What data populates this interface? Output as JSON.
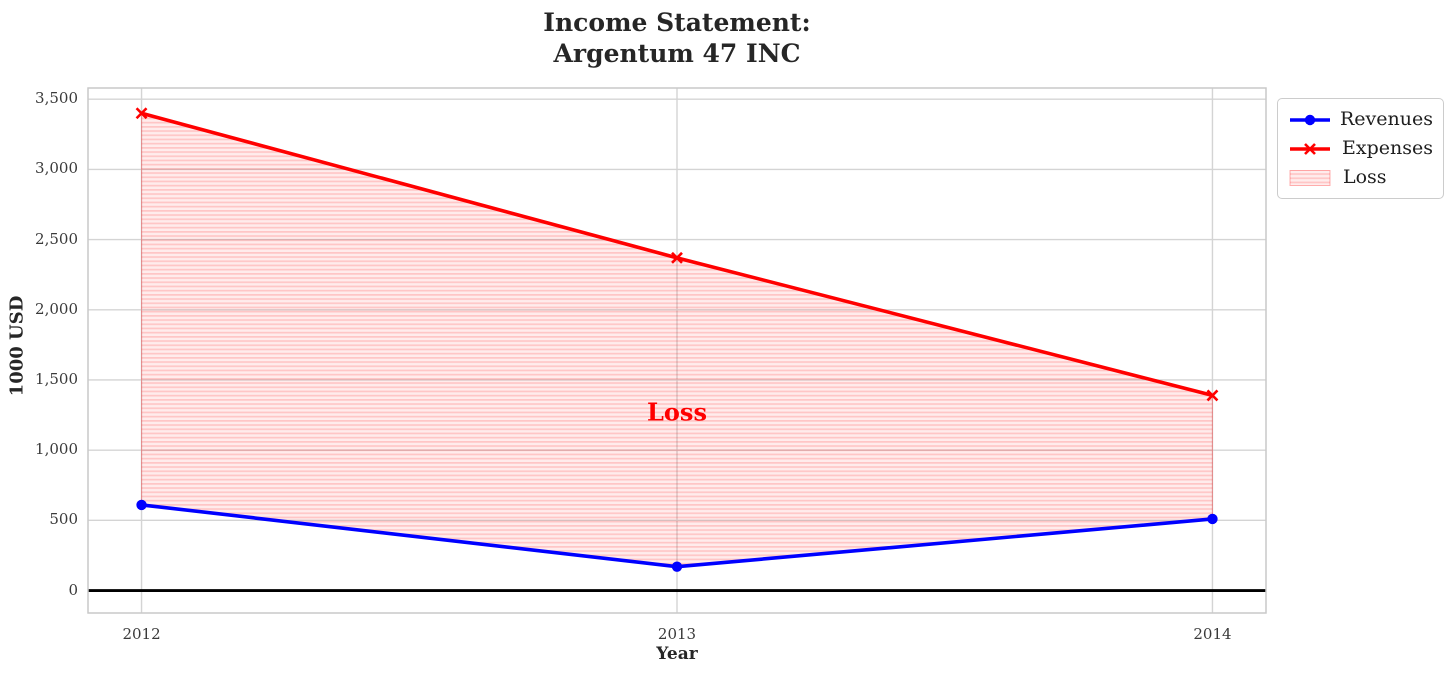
{
  "chart_data": {
    "type": "line",
    "title": "Income Statement:\nArgentum 47 INC",
    "xlabel": "Year",
    "ylabel": "1000 USD",
    "x": [
      2012,
      2013,
      2014
    ],
    "xticks": [
      2012,
      2013,
      2014
    ],
    "yticks": [
      0,
      500,
      1000,
      1500,
      2000,
      2500,
      3000,
      3500
    ],
    "xlim": [
      2011.9,
      2014.1
    ],
    "ylim": [
      -160,
      3580
    ],
    "grid": true,
    "zero_line": true,
    "series": [
      {
        "name": "Revenues",
        "color": "#0000ff",
        "marker": "circle",
        "values": [
          610,
          170,
          510
        ]
      },
      {
        "name": "Expenses",
        "color": "#ff0000",
        "marker": "x",
        "values": [
          3400,
          2370,
          1390
        ]
      }
    ],
    "fill_between": {
      "name": "Loss",
      "upper": "Expenses",
      "lower": "Revenues",
      "facecolor": "#ff0000",
      "alpha": 0.1,
      "hatch": "-"
    },
    "annotation": {
      "text": "Loss",
      "x": 2013,
      "y": 1270,
      "color": "#ff0000"
    },
    "legend_position": "upper right outside"
  }
}
